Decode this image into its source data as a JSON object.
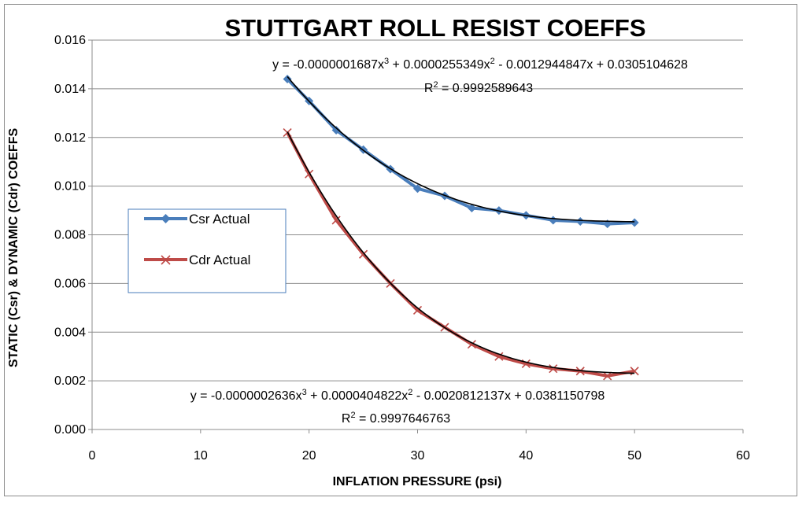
{
  "chart_data": {
    "type": "scatter",
    "title": "STUTTGART ROLL RESIST COEFFS",
    "xlabel": "INFLATION PRESSURE  (psi)",
    "ylabel": "STATIC (Csr) & DYNAMIC (Cdr) COEFFS",
    "xlim": [
      0,
      60
    ],
    "ylim": [
      0,
      0.016
    ],
    "xticks": [
      "0",
      "10",
      "20",
      "30",
      "40",
      "50",
      "60"
    ],
    "yticks": [
      "0.000",
      "0.002",
      "0.004",
      "0.006",
      "0.008",
      "0.010",
      "0.012",
      "0.014",
      "0.016"
    ],
    "grid": "horizontal",
    "legend_position": "left-middle",
    "series": [
      {
        "name": "Csr Actual",
        "color": "#4a7ebb",
        "marker": "diamond",
        "x": [
          18,
          20,
          22.5,
          25,
          27.5,
          30,
          32.5,
          35,
          37.5,
          40,
          42.5,
          45,
          47.5,
          50
        ],
        "y": [
          0.0144,
          0.0135,
          0.0123,
          0.0115,
          0.0107,
          0.0099,
          0.0096,
          0.0091,
          0.009,
          0.0088,
          0.0086,
          0.00855,
          0.00845,
          0.0085
        ],
        "trendline": {
          "coeffs": [
            -1.687e-07,
            2.55349e-05,
            -0.0012944847,
            0.0305104628
          ],
          "equation": "y = -0.0000001687x³ + 0.0000255349x² - 0.0012944847x + 0.0305104628",
          "r2": "R² = 0.9992589643",
          "color": "#000000"
        }
      },
      {
        "name": "Cdr Actual",
        "color": "#be4b48",
        "marker": "x",
        "x": [
          18,
          20,
          22.5,
          25,
          27.5,
          30,
          32.5,
          35,
          37.5,
          40,
          42.5,
          45,
          47.5,
          50
        ],
        "y": [
          0.0122,
          0.0105,
          0.0086,
          0.0072,
          0.006,
          0.0049,
          0.0042,
          0.0035,
          0.003,
          0.0027,
          0.0025,
          0.0024,
          0.0022,
          0.0024
        ],
        "trendline": {
          "coeffs": [
            -2.636e-07,
            4.04822e-05,
            -0.0020812137,
            0.0381150798
          ],
          "equation": "y = -0.0000002636x³ + 0.0000404822x² - 0.0020812137x + 0.0381150798",
          "r2": "R² = 0.9997646763",
          "color": "#000000"
        }
      }
    ]
  }
}
